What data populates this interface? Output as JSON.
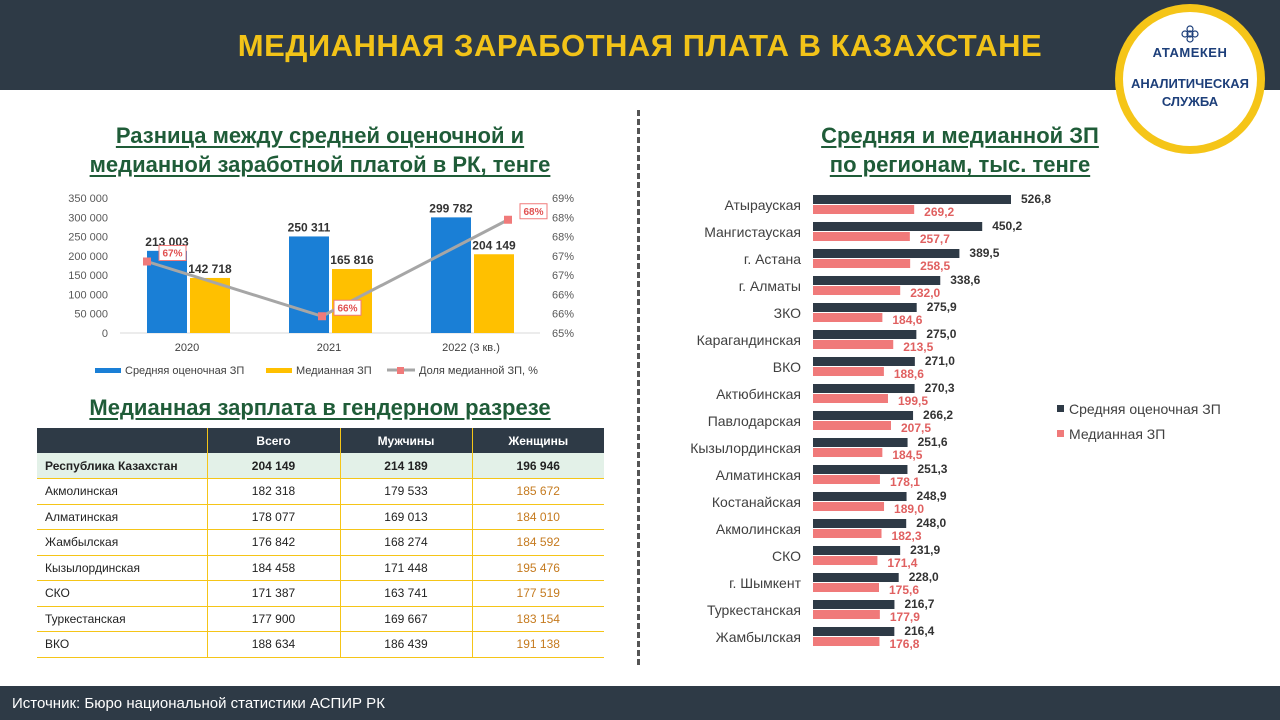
{
  "header": {
    "title": "МЕДИАННАЯ ЗАРАБОТНАЯ ПЛАТА В КАЗАХСТАНЕ",
    "logo_brand": "АТАМЕКЕН",
    "logo_service_line1": "АНАЛИТИЧЕСКАЯ",
    "logo_service_line2": "СЛУЖБА"
  },
  "left_chart_title_line1": "Разница между средней оценочной и",
  "left_chart_title_line2": "медианной заработной платой в РК, тенге",
  "right_chart_title_line1": "Средняя и медианной ЗП",
  "right_chart_title_line2": "по регионам, тыс. тенге",
  "table_title": "Медианная зарплата в гендерном разрезе",
  "colors": {
    "blue": "#1a7fd6",
    "yellow": "#ffc000",
    "gray_line": "#a6a6a6",
    "pink": "#f07a7a",
    "dark": "#2e3a46"
  },
  "chart_data": [
    {
      "type": "bar",
      "title": "Разница между средней оценочной и медианной заработной платой в РК, тенге",
      "categories": [
        "2020",
        "2021",
        "2022 (3 кв.)"
      ],
      "series": [
        {
          "name": "Средняя оценочная ЗП",
          "values": [
            213003,
            250311,
            299782
          ],
          "labels": [
            "213 003",
            "250 311",
            "299 782"
          ]
        },
        {
          "name": "Медианная ЗП",
          "values": [
            142718,
            165816,
            204149
          ],
          "labels": [
            "142 718",
            "165 816",
            "204 149"
          ]
        },
        {
          "name": "Доля медианной ЗП, %",
          "kind": "line",
          "axis": "right",
          "values": [
            67,
            66,
            68
          ],
          "labels": [
            "67%",
            "66%",
            "68%"
          ]
        }
      ],
      "ylim": [
        0,
        350000
      ],
      "y_ticks": [
        "350 000",
        "300 000",
        "250 000",
        "200 000",
        "150 000",
        "100 000",
        "50 000",
        "0"
      ],
      "y2_ticks": [
        "69%",
        "68%",
        "68%",
        "67%",
        "67%",
        "66%",
        "66%",
        "65%"
      ],
      "legend": "bottom"
    },
    {
      "type": "bar",
      "orientation": "horizontal",
      "title": "Средняя и медианной ЗП по регионам, тыс. тенге",
      "categories": [
        "Атырауская",
        "Мангистауская",
        "г. Астана",
        "г. Алматы",
        "ЗКО",
        "Карагандинская",
        "ВКО",
        "Актюбинская",
        "Павлодарская",
        "Кызылординская",
        "Алматинская",
        "Костанайская",
        "Акмолинская",
        "СКО",
        "г. Шымкент",
        "Туркестанская",
        "Жамбылская"
      ],
      "series": [
        {
          "name": "Средняя оценочная ЗП",
          "values": [
            526.8,
            450.2,
            389.5,
            338.6,
            275.9,
            275.0,
            271.0,
            270.3,
            266.2,
            251.6,
            251.3,
            248.9,
            248.0,
            231.9,
            228.0,
            216.7,
            216.4
          ]
        },
        {
          "name": "Медианная ЗП",
          "values": [
            269.2,
            257.7,
            258.5,
            232.0,
            184.6,
            213.5,
            188.6,
            199.5,
            207.5,
            184.5,
            178.1,
            189.0,
            182.3,
            171.4,
            175.6,
            177.9,
            176.8
          ]
        }
      ],
      "legend": "right"
    }
  ],
  "table": {
    "headers": [
      "",
      "Всего",
      "Мужчины",
      "Женщины"
    ],
    "rows": [
      [
        "Республика Казахстан",
        "204 149",
        "214 189",
        "196 946"
      ],
      [
        "Акмолинская",
        "182 318",
        "179 533",
        "185 672"
      ],
      [
        "Алматинская",
        "178 077",
        "169 013",
        "184 010"
      ],
      [
        "Жамбылская",
        "176 842",
        "168 274",
        "184 592"
      ],
      [
        "Кызылординская",
        "184 458",
        "171 448",
        "195 476"
      ],
      [
        "СКО",
        "171 387",
        "163 741",
        "177 519"
      ],
      [
        "Туркестанская",
        "177 900",
        "169 667",
        "183 154"
      ],
      [
        "ВКО",
        "188 634",
        "186 439",
        "191 138"
      ]
    ]
  },
  "footer": {
    "source": "Источник: Бюро национальной статистики АСПИР РК"
  }
}
